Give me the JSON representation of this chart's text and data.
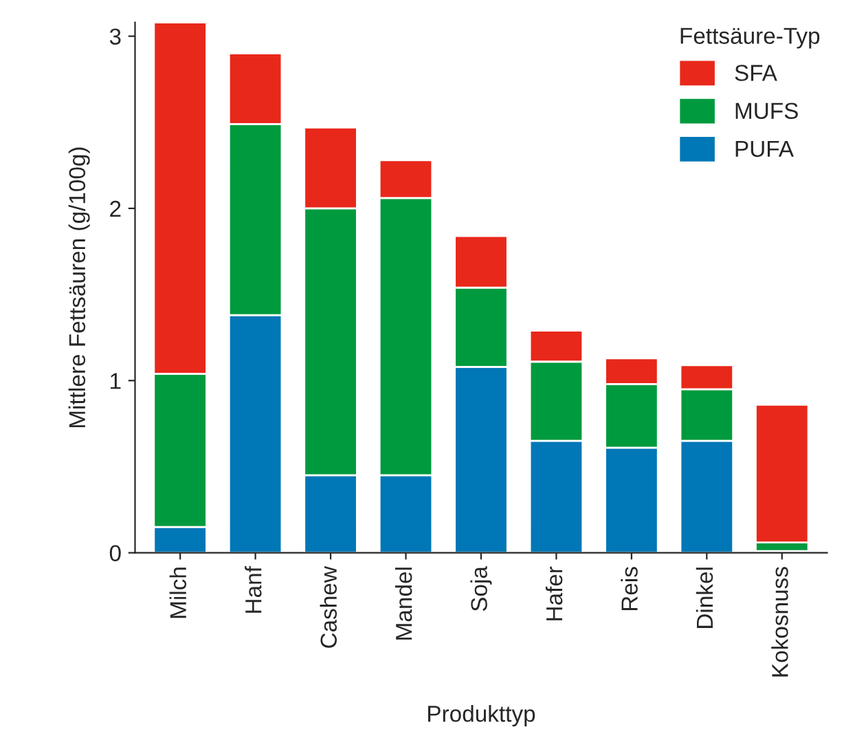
{
  "chart_data": {
    "type": "bar",
    "stacked": true,
    "xlabel": "Produkttyp",
    "ylabel": "Mittlere Fettsäuren (g/100g)",
    "legend_title": "Fettsäure-Typ",
    "legend": "top right",
    "categories": [
      "Milch",
      "Hanf",
      "Cashew",
      "Mandel",
      "Soja",
      "Hafer",
      "Reis",
      "Dinkel",
      "Kokosnuss"
    ],
    "series": [
      {
        "name": "PUFA",
        "color": "#0077b6",
        "values": [
          0.15,
          1.38,
          0.45,
          0.45,
          1.08,
          0.65,
          0.61,
          0.65,
          0.01
        ]
      },
      {
        "name": "MUFS",
        "color": "#009a3e",
        "values": [
          0.89,
          1.11,
          1.55,
          1.61,
          0.46,
          0.46,
          0.37,
          0.3,
          0.05
        ]
      },
      {
        "name": "SFA",
        "color": "#e8281a",
        "values": [
          2.04,
          0.41,
          0.47,
          0.22,
          0.3,
          0.18,
          0.15,
          0.14,
          0.8
        ]
      }
    ],
    "ylim": [
      0,
      3.08
    ],
    "yticks": [
      0,
      1,
      2,
      3
    ],
    "grid": false
  }
}
